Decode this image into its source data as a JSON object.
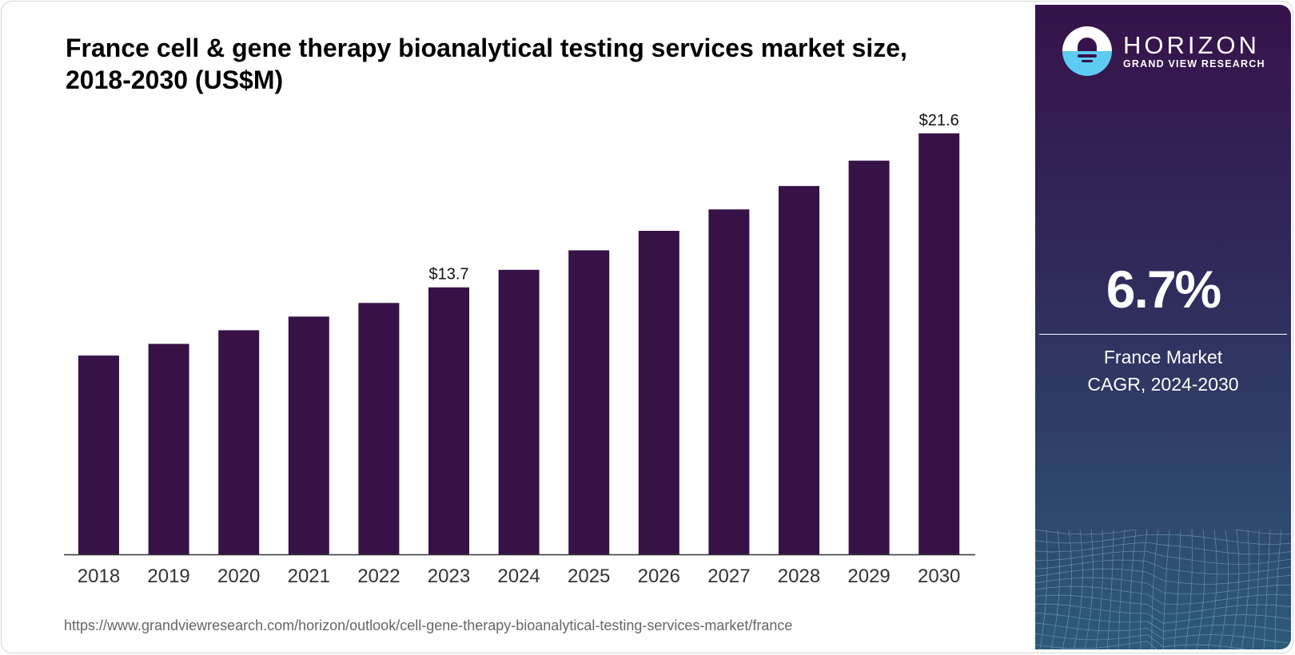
{
  "title": "France cell & gene therapy bioanalytical testing services market size, 2018-2030 (US$M)",
  "url": "https://www.grandviewresearch.com/horizon/outlook/cell-gene-therapy-bioanalytical-testing-services-market/france",
  "brand": {
    "name": "HORIZON",
    "sub": "GRAND VIEW RESEARCH"
  },
  "side": {
    "cagr": "6.7%",
    "label_line1": "France Market",
    "label_line2": "CAGR, 2024-2030"
  },
  "colors": {
    "bar": "#371247"
  },
  "chart_data": {
    "type": "bar",
    "title": "France cell & gene therapy bioanalytical testing services market size, 2018-2030 (US$M)",
    "categories": [
      "2018",
      "2019",
      "2020",
      "2021",
      "2022",
      "2023",
      "2024",
      "2025",
      "2026",
      "2027",
      "2028",
      "2029",
      "2030"
    ],
    "values": [
      10.2,
      10.8,
      11.5,
      12.2,
      12.9,
      13.7,
      14.6,
      15.6,
      16.6,
      17.7,
      18.9,
      20.2,
      21.6
    ],
    "data_labels": {
      "2023": "$13.7",
      "2030": "$21.6"
    },
    "xlabel": "",
    "ylabel": "",
    "ylim": [
      0,
      21.6
    ]
  }
}
